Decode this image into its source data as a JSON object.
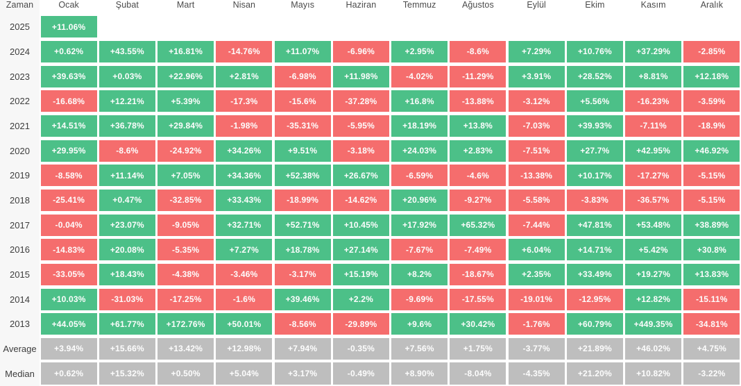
{
  "header": {
    "time_label": "Zaman",
    "months": [
      "Ocak",
      "Şubat",
      "Mart",
      "Nisan",
      "Mayıs",
      "Haziran",
      "Temmuz",
      "Ağustos",
      "Eylül",
      "Ekim",
      "Kasım",
      "Aralık"
    ]
  },
  "colors": {
    "positive": "#4cc088",
    "negative": "#f56d6d",
    "neutral": "#bebebe",
    "label_background": "#f7f7f7",
    "cell_text": "#fdfdfd"
  },
  "chart_data": {
    "type": "heatmap",
    "title": "",
    "xlabel": "Zaman",
    "categories": [
      "Ocak",
      "Şubat",
      "Mart",
      "Nisan",
      "Mayıs",
      "Haziran",
      "Temmuz",
      "Ağustos",
      "Eylül",
      "Ekim",
      "Kasım",
      "Aralık"
    ],
    "legend": {
      "positive": "green",
      "negative": "red",
      "summary": "gray"
    },
    "rows": [
      {
        "label": "2025",
        "type": "year",
        "values": [
          "+11.06%",
          null,
          null,
          null,
          null,
          null,
          null,
          null,
          null,
          null,
          null,
          null
        ]
      },
      {
        "label": "2024",
        "type": "year",
        "values": [
          "+0.62%",
          "+43.55%",
          "+16.81%",
          "-14.76%",
          "+11.07%",
          "-6.96%",
          "+2.95%",
          "-8.6%",
          "+7.29%",
          "+10.76%",
          "+37.29%",
          "-2.85%"
        ]
      },
      {
        "label": "2023",
        "type": "year",
        "values": [
          "+39.63%",
          "+0.03%",
          "+22.96%",
          "+2.81%",
          "-6.98%",
          "+11.98%",
          "-4.02%",
          "-11.29%",
          "+3.91%",
          "+28.52%",
          "+8.81%",
          "+12.18%"
        ]
      },
      {
        "label": "2022",
        "type": "year",
        "values": [
          "-16.68%",
          "+12.21%",
          "+5.39%",
          "-17.3%",
          "-15.6%",
          "-37.28%",
          "+16.8%",
          "-13.88%",
          "-3.12%",
          "+5.56%",
          "-16.23%",
          "-3.59%"
        ]
      },
      {
        "label": "2021",
        "type": "year",
        "values": [
          "+14.51%",
          "+36.78%",
          "+29.84%",
          "-1.98%",
          "-35.31%",
          "-5.95%",
          "+18.19%",
          "+13.8%",
          "-7.03%",
          "+39.93%",
          "-7.11%",
          "-18.9%"
        ]
      },
      {
        "label": "2020",
        "type": "year",
        "values": [
          "+29.95%",
          "-8.6%",
          "-24.92%",
          "+34.26%",
          "+9.51%",
          "-3.18%",
          "+24.03%",
          "+2.83%",
          "-7.51%",
          "+27.7%",
          "+42.95%",
          "+46.92%"
        ]
      },
      {
        "label": "2019",
        "type": "year",
        "values": [
          "-8.58%",
          "+11.14%",
          "+7.05%",
          "+34.36%",
          "+52.38%",
          "+26.67%",
          "-6.59%",
          "-4.6%",
          "-13.38%",
          "+10.17%",
          "-17.27%",
          "-5.15%"
        ]
      },
      {
        "label": "2018",
        "type": "year",
        "values": [
          "-25.41%",
          "+0.47%",
          "-32.85%",
          "+33.43%",
          "-18.99%",
          "-14.62%",
          "+20.96%",
          "-9.27%",
          "-5.58%",
          "-3.83%",
          "-36.57%",
          "-5.15%"
        ]
      },
      {
        "label": "2017",
        "type": "year",
        "values": [
          "-0.04%",
          "+23.07%",
          "-9.05%",
          "+32.71%",
          "+52.71%",
          "+10.45%",
          "+17.92%",
          "+65.32%",
          "-7.44%",
          "+47.81%",
          "+53.48%",
          "+38.89%"
        ]
      },
      {
        "label": "2016",
        "type": "year",
        "values": [
          "-14.83%",
          "+20.08%",
          "-5.35%",
          "+7.27%",
          "+18.78%",
          "+27.14%",
          "-7.67%",
          "-7.49%",
          "+6.04%",
          "+14.71%",
          "+5.42%",
          "+30.8%"
        ]
      },
      {
        "label": "2015",
        "type": "year",
        "values": [
          "-33.05%",
          "+18.43%",
          "-4.38%",
          "-3.46%",
          "-3.17%",
          "+15.19%",
          "+8.2%",
          "-18.67%",
          "+2.35%",
          "+33.49%",
          "+19.27%",
          "+13.83%"
        ]
      },
      {
        "label": "2014",
        "type": "year",
        "values": [
          "+10.03%",
          "-31.03%",
          "-17.25%",
          "-1.6%",
          "+39.46%",
          "+2.2%",
          "-9.69%",
          "-17.55%",
          "-19.01%",
          "-12.95%",
          "+12.82%",
          "-15.11%"
        ]
      },
      {
        "label": "2013",
        "type": "year",
        "values": [
          "+44.05%",
          "+61.77%",
          "+172.76%",
          "+50.01%",
          "-8.56%",
          "-29.89%",
          "+9.6%",
          "+30.42%",
          "-1.76%",
          "+60.79%",
          "+449.35%",
          "-34.81%"
        ]
      },
      {
        "label": "Average",
        "type": "summary",
        "values": [
          "+3.94%",
          "+15.66%",
          "+13.42%",
          "+12.98%",
          "+7.94%",
          "-0.35%",
          "+7.56%",
          "+1.75%",
          "-3.77%",
          "+21.89%",
          "+46.02%",
          "+4.75%"
        ]
      },
      {
        "label": "Median",
        "type": "summary",
        "values": [
          "+0.62%",
          "+15.32%",
          "+0.50%",
          "+5.04%",
          "+3.17%",
          "-0.49%",
          "+8.90%",
          "-8.04%",
          "-4.35%",
          "+21.20%",
          "+10.82%",
          "-3.22%"
        ]
      }
    ]
  }
}
